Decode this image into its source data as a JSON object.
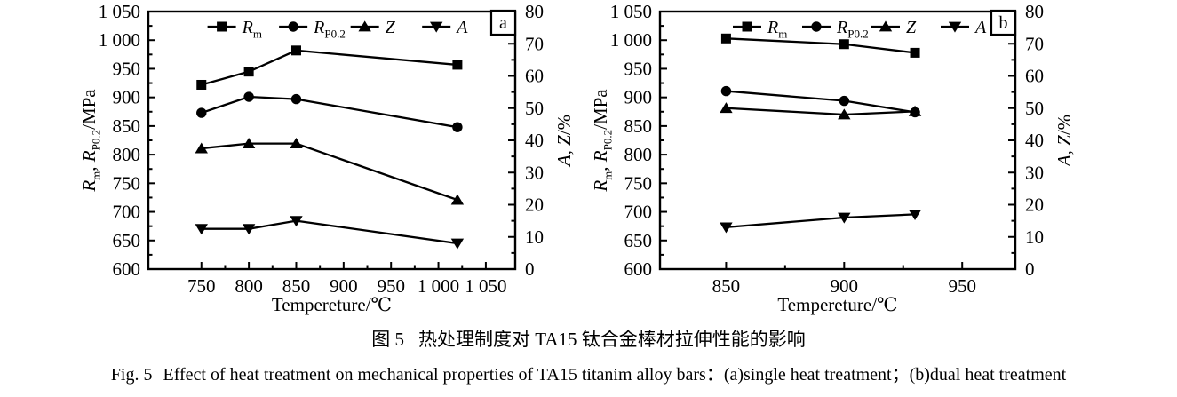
{
  "figure": {
    "background": "#ffffff",
    "ink": "#000000",
    "caption_zh_label": "图 5",
    "caption_zh_text": "热处理制度对 TA15 钛合金棒材拉伸性能的影响",
    "caption_en_label": "Fig. 5",
    "caption_en_text": "Effect of heat treatment on mechanical properties of TA15 titanim alloy bars：(a)single heat treatment；(b)dual heat treatment"
  },
  "chart_data": [
    {
      "type": "line",
      "panel_label": "a",
      "xlabel": "Tempereture/℃",
      "ylabel_left": "Rm, RP0.2/MPa",
      "ylabel_right": "A, Z/%",
      "ylabel_left_parts": [
        {
          "t": "R",
          "i": 1
        },
        {
          "t": "m",
          "s": 1
        },
        {
          "t": ", "
        },
        {
          "t": "R",
          "i": 1
        },
        {
          "t": "P0.2",
          "s": 1
        },
        {
          "t": "/MPa"
        }
      ],
      "ylabel_right_parts": [
        {
          "t": "A",
          "i": 1
        },
        {
          "t": ", "
        },
        {
          "t": "Z",
          "i": 1
        },
        {
          "t": "/%"
        }
      ],
      "xlim": [
        694,
        1081
      ],
      "x_minor_step": 25,
      "x_ticks": [
        {
          "v": 750,
          "label": "750"
        },
        {
          "v": 800,
          "label": "800"
        },
        {
          "v": 850,
          "label": "850"
        },
        {
          "v": 900,
          "label": "900"
        },
        {
          "v": 950,
          "label": "950"
        },
        {
          "v": 1000,
          "label": "1 000"
        },
        {
          "v": 1050,
          "label": "1 050"
        }
      ],
      "ylim_left": [
        600,
        1050
      ],
      "y_left_minor_step": 25,
      "y_ticks_left": [
        {
          "v": 600,
          "label": "600"
        },
        {
          "v": 650,
          "label": "650"
        },
        {
          "v": 700,
          "label": "700"
        },
        {
          "v": 750,
          "label": "750"
        },
        {
          "v": 800,
          "label": "800"
        },
        {
          "v": 850,
          "label": "850"
        },
        {
          "v": 900,
          "label": "900"
        },
        {
          "v": 950,
          "label": "950"
        },
        {
          "v": 1000,
          "label": "1 000"
        },
        {
          "v": 1050,
          "label": "1 050"
        }
      ],
      "ylim_right": [
        0,
        80
      ],
      "y_right_minor_step": 5,
      "y_ticks_right": [
        {
          "v": 0,
          "label": "0"
        },
        {
          "v": 10,
          "label": "10"
        },
        {
          "v": 20,
          "label": "20"
        },
        {
          "v": 30,
          "label": "30"
        },
        {
          "v": 40,
          "label": "40"
        },
        {
          "v": 50,
          "label": "50"
        },
        {
          "v": 60,
          "label": "60"
        },
        {
          "v": 70,
          "label": "70"
        },
        {
          "v": 80,
          "label": "80"
        }
      ],
      "series": [
        {
          "name": "Rm",
          "label_parts": [
            {
              "t": "R",
              "i": 1
            },
            {
              "t": "m",
              "s": 1
            }
          ],
          "marker": "square",
          "axis": "left",
          "unit": "MPa",
          "x": [
            750,
            800,
            850,
            1020
          ],
          "y": [
            922,
            945,
            982,
            957
          ]
        },
        {
          "name": "RP0.2",
          "label_parts": [
            {
              "t": "R",
              "i": 1
            },
            {
              "t": "P0.2",
              "s": 1
            }
          ],
          "marker": "circle",
          "axis": "left",
          "unit": "MPa",
          "x": [
            750,
            800,
            850,
            1020
          ],
          "y": [
            873,
            901,
            897,
            848
          ]
        },
        {
          "name": "Z",
          "label_parts": [
            {
              "t": "Z",
              "i": 1
            }
          ],
          "marker": "triangle-up",
          "axis": "right",
          "unit": "%",
          "x": [
            750,
            800,
            850,
            1020
          ],
          "y": [
            37.5,
            39,
            39,
            21.5
          ]
        },
        {
          "name": "A",
          "label_parts": [
            {
              "t": "A",
              "i": 1
            }
          ],
          "marker": "triangle-down",
          "axis": "right",
          "unit": "%",
          "x": [
            750,
            800,
            850,
            1020
          ],
          "y": [
            12.5,
            12.5,
            15,
            8
          ]
        }
      ]
    },
    {
      "type": "line",
      "panel_label": "b",
      "xlabel": "Tempereture/℃",
      "ylabel_left": "Rm, RP0.2/MPa",
      "ylabel_right": "A, Z/%",
      "ylabel_left_parts": [
        {
          "t": "R",
          "i": 1
        },
        {
          "t": "m",
          "s": 1
        },
        {
          "t": ", "
        },
        {
          "t": "R",
          "i": 1
        },
        {
          "t": "P0.2",
          "s": 1
        },
        {
          "t": "/MPa"
        }
      ],
      "ylabel_right_parts": [
        {
          "t": "A",
          "i": 1
        },
        {
          "t": ", "
        },
        {
          "t": "Z",
          "i": 1
        },
        {
          "t": "/%"
        }
      ],
      "xlim": [
        822,
        972.5
      ],
      "x_minor_step": 25,
      "x_ticks": [
        {
          "v": 850,
          "label": "850"
        },
        {
          "v": 900,
          "label": "900"
        },
        {
          "v": 950,
          "label": "950"
        }
      ],
      "ylim_left": [
        600,
        1050
      ],
      "y_left_minor_step": 25,
      "y_ticks_left": [
        {
          "v": 600,
          "label": "600"
        },
        {
          "v": 650,
          "label": "650"
        },
        {
          "v": 700,
          "label": "700"
        },
        {
          "v": 750,
          "label": "750"
        },
        {
          "v": 800,
          "label": "800"
        },
        {
          "v": 850,
          "label": "850"
        },
        {
          "v": 900,
          "label": "900"
        },
        {
          "v": 950,
          "label": "950"
        },
        {
          "v": 1000,
          "label": "1 000"
        },
        {
          "v": 1050,
          "label": "1 050"
        }
      ],
      "ylim_right": [
        0,
        80
      ],
      "y_right_minor_step": 5,
      "y_ticks_right": [
        {
          "v": 0,
          "label": "0"
        },
        {
          "v": 10,
          "label": "10"
        },
        {
          "v": 20,
          "label": "20"
        },
        {
          "v": 30,
          "label": "30"
        },
        {
          "v": 40,
          "label": "40"
        },
        {
          "v": 50,
          "label": "50"
        },
        {
          "v": 60,
          "label": "60"
        },
        {
          "v": 70,
          "label": "70"
        },
        {
          "v": 80,
          "label": "80"
        }
      ],
      "series": [
        {
          "name": "Rm",
          "label_parts": [
            {
              "t": "R",
              "i": 1
            },
            {
              "t": "m",
              "s": 1
            }
          ],
          "marker": "square",
          "axis": "left",
          "unit": "MPa",
          "x": [
            850,
            900,
            930
          ],
          "y": [
            1003,
            993,
            978
          ]
        },
        {
          "name": "RP0.2",
          "label_parts": [
            {
              "t": "R",
              "i": 1
            },
            {
              "t": "P0.2",
              "s": 1
            }
          ],
          "marker": "circle",
          "axis": "left",
          "unit": "MPa",
          "x": [
            850,
            900,
            930
          ],
          "y": [
            911,
            894,
            874
          ]
        },
        {
          "name": "Z",
          "label_parts": [
            {
              "t": "Z",
              "i": 1
            }
          ],
          "marker": "triangle-up",
          "axis": "right",
          "unit": "%",
          "x": [
            850,
            900,
            930
          ],
          "y": [
            50,
            48,
            49
          ]
        },
        {
          "name": "A",
          "label_parts": [
            {
              "t": "A",
              "i": 1
            }
          ],
          "marker": "triangle-down",
          "axis": "right",
          "unit": "%",
          "x": [
            850,
            900,
            930
          ],
          "y": [
            13,
            16,
            17
          ]
        }
      ]
    }
  ]
}
